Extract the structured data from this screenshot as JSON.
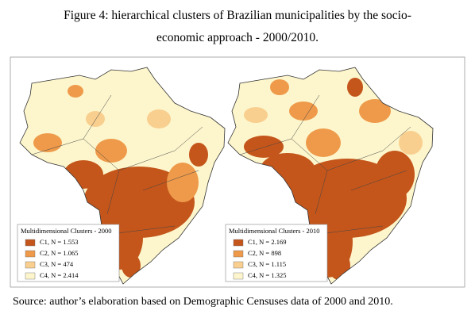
{
  "title_lines": [
    "Figure 4: hierarchical clusters of Brazilian municipalities by the socio-",
    "economic approach - 2000/2010."
  ],
  "maps": [
    {
      "legend_title": "Multidimensional Clusters - 2000",
      "legend": [
        {
          "label": "C1, N = 1.553",
          "color": "#c4561b"
        },
        {
          "label": "C2, N = 1.065",
          "color": "#ee9a4a"
        },
        {
          "label": "C3, N = 474",
          "color": "#f9cf8f"
        },
        {
          "label": "C4, N = 2.414",
          "color": "#fdf6cc"
        }
      ]
    },
    {
      "legend_title": "Multidimensional Clusters - 2010",
      "legend": [
        {
          "label": "C1, N = 2.169",
          "color": "#c4561b"
        },
        {
          "label": "C2, N = 898",
          "color": "#ee9a4a"
        },
        {
          "label": "C3, N = 1.115",
          "color": "#f9cf8f"
        },
        {
          "label": "C4, N = 1.325",
          "color": "#fdf6cc"
        }
      ]
    }
  ],
  "source": "Source: author’s elaboration based on Demographic Censuses data of 2000 and 2010."
}
